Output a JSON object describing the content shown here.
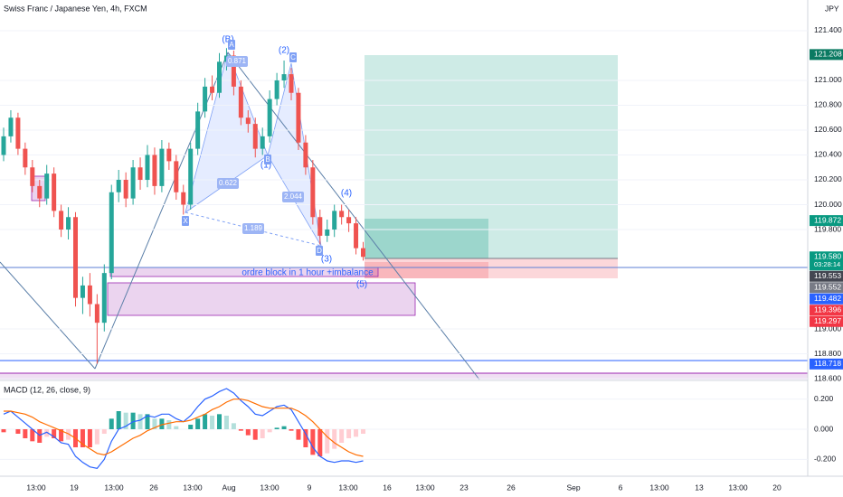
{
  "chart_data": [
    {
      "type": "candlestick",
      "title": "Swiss Franc / Japanese Yen, 4h, FXCM",
      "currency": "JPY",
      "ylim": [
        118.593,
        121.647
      ],
      "yticks": [
        {
          "value": 121.4,
          "label": "121.400"
        },
        {
          "value": 121.0,
          "label": "121.000"
        },
        {
          "value": 120.8,
          "label": "120.800"
        },
        {
          "value": 120.6,
          "label": "120.600"
        },
        {
          "value": 120.4,
          "label": "120.400"
        },
        {
          "value": 120.2,
          "label": "120.200"
        },
        {
          "value": 120.0,
          "label": "120.000"
        },
        {
          "value": 119.8,
          "label": "119.800"
        },
        {
          "value": 119.0,
          "label": "119.000"
        },
        {
          "value": 118.8,
          "label": "118.800"
        },
        {
          "value": 118.6,
          "label": "118.600"
        }
      ],
      "grid": true,
      "up_color": "#26a69a",
      "down_color": "#ef5350",
      "open": [
        120.4,
        120.55,
        120.7,
        120.45,
        120.3,
        120.15,
        120.05,
        120.25,
        119.95,
        119.8,
        119.9,
        119.25,
        119.35,
        119.2,
        119.05,
        119.45,
        120.1,
        120.2,
        120.05,
        120.3,
        120.2,
        120.4,
        120.15,
        120.45,
        120.35,
        120.1,
        120.0,
        120.45,
        120.75,
        120.95,
        120.9,
        121.15,
        121.2,
        120.95,
        120.7,
        120.65,
        120.45,
        120.55,
        120.85,
        121.0,
        121.05,
        120.9,
        120.5,
        120.3,
        119.9,
        119.75,
        119.8,
        119.95,
        119.9,
        119.85,
        119.65
      ],
      "high": [
        120.62,
        120.76,
        120.74,
        120.5,
        120.36,
        120.2,
        120.32,
        120.3,
        120.0,
        119.98,
        119.94,
        119.42,
        119.45,
        119.28,
        119.52,
        120.16,
        120.28,
        120.26,
        120.36,
        120.38,
        120.48,
        120.46,
        120.52,
        120.5,
        120.4,
        120.16,
        120.5,
        120.82,
        121.02,
        121.04,
        121.22,
        121.26,
        121.24,
        121.0,
        120.76,
        120.7,
        120.62,
        120.92,
        121.06,
        121.16,
        121.1,
        120.94,
        120.56,
        120.36,
        119.96,
        119.88,
        120.0,
        120.0,
        119.96,
        119.9,
        119.7
      ],
      "low": [
        120.35,
        120.5,
        120.4,
        120.24,
        120.1,
        119.98,
        120.0,
        119.9,
        119.74,
        119.72,
        119.18,
        119.12,
        119.1,
        118.72,
        118.98,
        119.4,
        120.02,
        119.98,
        120.0,
        120.12,
        120.14,
        120.08,
        120.1,
        120.28,
        120.04,
        119.92,
        119.96,
        120.4,
        120.7,
        120.84,
        120.86,
        121.08,
        120.88,
        120.64,
        120.58,
        120.38,
        120.4,
        120.5,
        120.8,
        120.94,
        120.84,
        120.44,
        120.24,
        119.84,
        119.68,
        119.7,
        119.74,
        119.84,
        119.78,
        119.6,
        119.55
      ],
      "close": [
        120.55,
        120.7,
        120.45,
        120.3,
        120.15,
        120.05,
        120.25,
        119.95,
        119.8,
        119.9,
        119.25,
        119.35,
        119.2,
        119.05,
        119.45,
        120.1,
        120.2,
        120.05,
        120.3,
        120.2,
        120.4,
        120.15,
        120.45,
        120.35,
        120.1,
        120.0,
        120.45,
        120.75,
        120.95,
        120.9,
        121.15,
        121.2,
        120.95,
        120.7,
        120.65,
        120.45,
        120.55,
        120.85,
        121.0,
        121.05,
        120.9,
        120.5,
        120.3,
        119.9,
        119.75,
        119.8,
        119.95,
        119.9,
        119.85,
        119.65,
        119.58
      ],
      "price_labels": [
        {
          "value": 121.208,
          "label": "121.208",
          "color": "#0b7a62"
        },
        {
          "value": 119.872,
          "label": "119.872",
          "color": "#089981"
        },
        {
          "value": 119.58,
          "label": "119.580",
          "sub": "03:28:14",
          "color": "#089981"
        },
        {
          "value": 119.553,
          "label": "119.553",
          "color": "#434651"
        },
        {
          "value": 119.552,
          "label": "119.552",
          "color": "#787b86"
        },
        {
          "value": 119.482,
          "label": "119.482",
          "color": "#2962ff"
        },
        {
          "value": 119.396,
          "label": "119.396",
          "color": "#f23645"
        },
        {
          "value": 119.297,
          "label": "119.297",
          "color": "#f23645"
        },
        {
          "value": 118.718,
          "label": "118.718",
          "color": "#2962ff"
        }
      ],
      "annotations": [
        "(B)",
        "(2)",
        "(1)",
        "(3)",
        "(4)",
        "(5)",
        "ordre block in 1 hour +imbalance"
      ],
      "pattern_points": [
        "A",
        "C",
        "B",
        "D",
        "X"
      ],
      "pattern_ratios": [
        "0.871",
        "0.622",
        "2.044",
        "1.189"
      ],
      "x_labels": [
        "13:00",
        "19",
        "13:00",
        "26",
        "13:00",
        "Aug",
        "13:00",
        "9",
        "13:00",
        "16",
        "13:00",
        "23",
        "26",
        "Sep",
        "6",
        "13:00",
        "13",
        "13:00",
        "20"
      ]
    },
    {
      "type": "macd",
      "title": "MACD (12, 26, close, 9)",
      "ylim": [
        -0.3,
        0.3
      ],
      "yticks": [
        {
          "value": 0.2,
          "label": "0.200"
        },
        {
          "value": 0,
          "label": "0.000"
        },
        {
          "value": -0.2,
          "label": "-0.200"
        }
      ],
      "macd_color": "#2962ff",
      "signal_color": "#ff6d00",
      "macd": [
        0.1,
        0.12,
        0.08,
        0.04,
        0.0,
        -0.04,
        -0.02,
        -0.05,
        -0.09,
        -0.1,
        -0.18,
        -0.22,
        -0.25,
        -0.26,
        -0.2,
        -0.08,
        0.0,
        0.02,
        0.05,
        0.06,
        0.09,
        0.08,
        0.1,
        0.1,
        0.07,
        0.05,
        0.09,
        0.15,
        0.2,
        0.22,
        0.25,
        0.27,
        0.24,
        0.19,
        0.15,
        0.1,
        0.09,
        0.12,
        0.15,
        0.16,
        0.13,
        0.05,
        -0.03,
        -0.12,
        -0.18,
        -0.21,
        -0.22,
        -0.21,
        -0.21,
        -0.22,
        -0.21
      ],
      "signal": [
        0.12,
        0.12,
        0.11,
        0.1,
        0.08,
        0.05,
        0.03,
        0.01,
        -0.01,
        -0.03,
        -0.06,
        -0.1,
        -0.13,
        -0.16,
        -0.17,
        -0.15,
        -0.12,
        -0.09,
        -0.06,
        -0.04,
        -0.01,
        0.01,
        0.03,
        0.04,
        0.05,
        0.05,
        0.06,
        0.08,
        0.1,
        0.13,
        0.15,
        0.18,
        0.2,
        0.2,
        0.19,
        0.17,
        0.15,
        0.14,
        0.14,
        0.14,
        0.14,
        0.12,
        0.09,
        0.05,
        0.0,
        -0.05,
        -0.09,
        -0.12,
        -0.15,
        -0.17,
        -0.18
      ],
      "histogram": [
        -0.02,
        0,
        -0.03,
        -0.06,
        -0.08,
        -0.09,
        -0.05,
        -0.06,
        -0.08,
        -0.07,
        -0.12,
        -0.12,
        -0.12,
        -0.1,
        -0.03,
        0.07,
        0.12,
        0.11,
        0.11,
        0.1,
        0.1,
        0.07,
        0.07,
        0.06,
        0.02,
        0.0,
        0.03,
        0.07,
        0.1,
        0.09,
        0.1,
        0.09,
        0.04,
        -0.01,
        -0.04,
        -0.07,
        -0.06,
        -0.02,
        0.01,
        0.02,
        -0.01,
        -0.07,
        -0.12,
        -0.17,
        -0.18,
        -0.16,
        -0.13,
        -0.09,
        -0.06,
        -0.05,
        -0.03
      ]
    }
  ]
}
